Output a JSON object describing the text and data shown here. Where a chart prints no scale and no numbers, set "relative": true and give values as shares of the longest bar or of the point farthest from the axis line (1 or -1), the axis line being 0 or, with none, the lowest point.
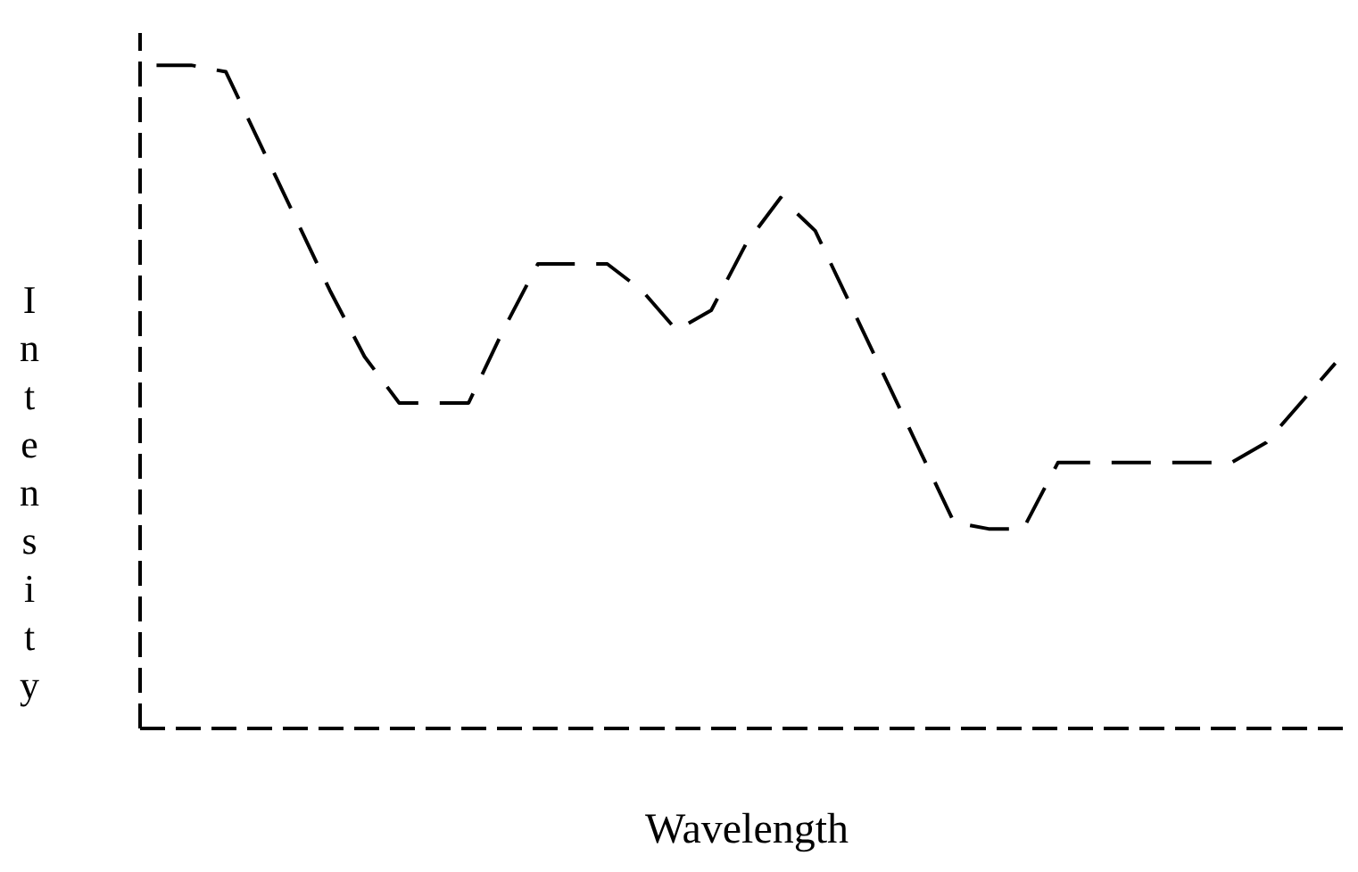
{
  "chart_data": {
    "type": "line",
    "xlabel": "Wavelength",
    "ylabel": "Intensity",
    "relative": true,
    "tick_labels": false,
    "grid": false,
    "marker": "none",
    "line_style": "dashed",
    "categories": [
      null,
      null,
      null,
      null,
      null,
      null,
      null,
      null,
      null,
      null,
      null,
      null,
      null,
      null,
      null,
      null,
      null,
      null,
      null,
      null,
      null,
      null,
      null,
      null,
      null,
      null,
      null,
      null,
      null,
      null,
      null,
      null,
      null,
      null,
      null
    ],
    "series": [
      {
        "color": "#000000",
        "values": [
          1,
          1,
          0.99,
          0.88,
          0.77,
          0.66,
          0.56,
          0.49,
          0.49,
          0.49,
          0.6,
          0.7,
          0.7,
          0.7,
          0.66,
          0.6,
          0.63,
          0.73,
          0.8,
          0.75,
          0.64,
          0.53,
          0.42,
          0.31,
          0.3,
          0.3,
          0.4,
          0.4,
          0.4,
          0.4,
          0.4,
          0.4,
          0.43,
          0.49,
          0.55
        ]
      }
    ]
  }
}
